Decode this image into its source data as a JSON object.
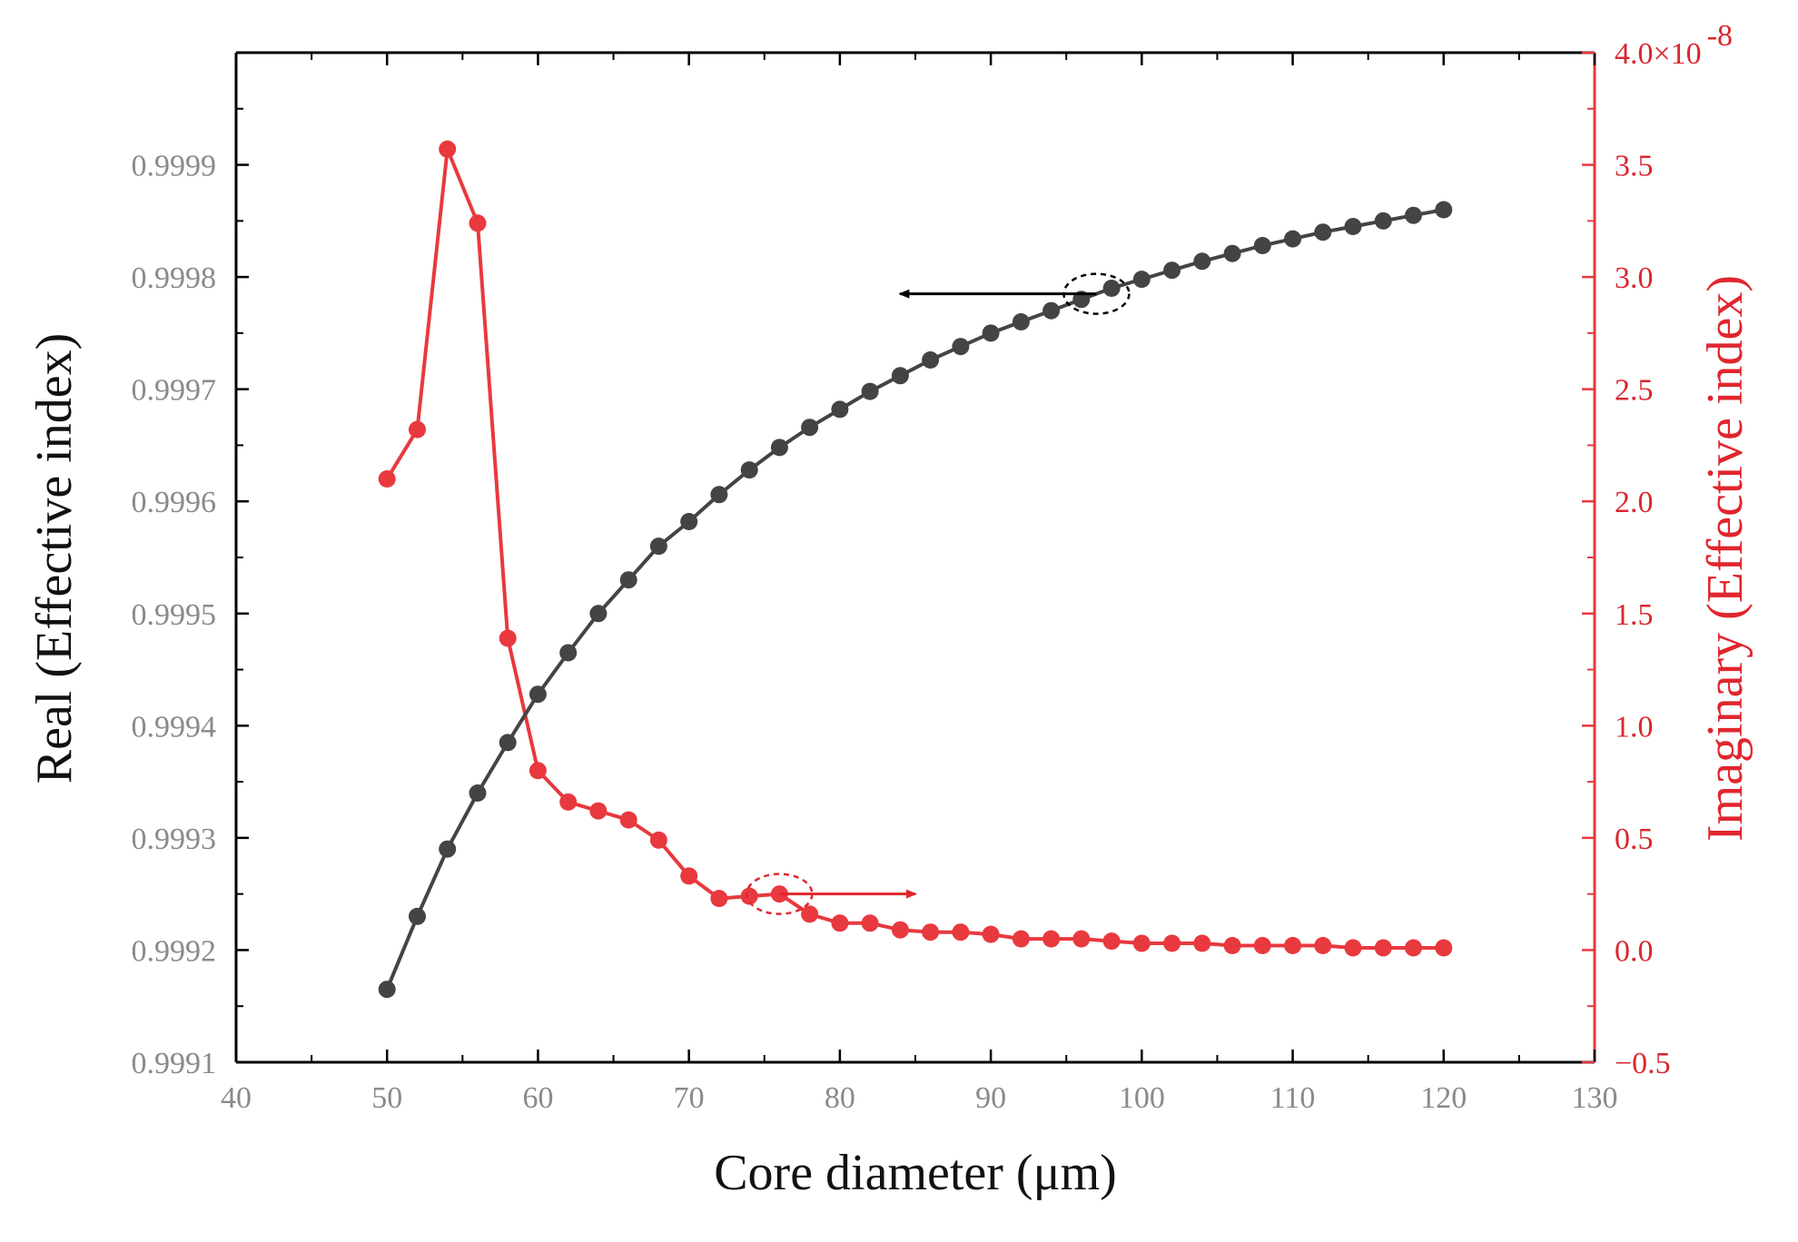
{
  "chart_data": {
    "type": "line",
    "title": "",
    "xlabel": "Core diameter (μm)",
    "ylabel_left": "Real (Effective index)",
    "ylabel_right": "Imaginary (Effective index)",
    "xlim": [
      40,
      130
    ],
    "xticks": [
      40,
      50,
      60,
      70,
      80,
      90,
      100,
      110,
      120,
      130
    ],
    "ylim_left": [
      0.9991,
      1.0
    ],
    "yticks_left": [
      "0.9991",
      "0.9992",
      "0.9993",
      "0.9994",
      "0.9995",
      "0.9996",
      "0.9997",
      "0.9998",
      "0.9999"
    ],
    "ylim_right": [
      -0.5,
      4.0
    ],
    "yticks_right": [
      "−0.5",
      "0.0",
      "0.5",
      "1.0",
      "1.5",
      "2.0",
      "2.5",
      "3.0",
      "3.5",
      "4.0×10"
    ],
    "right_axis_exponent": "-8",
    "x": [
      50,
      52,
      54,
      56,
      58,
      60,
      62,
      64,
      66,
      68,
      70,
      72,
      74,
      76,
      78,
      80,
      82,
      84,
      86,
      88,
      90,
      92,
      94,
      96,
      98,
      100,
      102,
      104,
      106,
      108,
      110,
      112,
      114,
      116,
      118,
      120
    ],
    "series": [
      {
        "name": "Real",
        "axis": "left",
        "color": "#444444",
        "values": [
          0.999165,
          0.99923,
          0.99929,
          0.99934,
          0.999385,
          0.999428,
          0.999465,
          0.9995,
          0.99953,
          0.99956,
          0.999582,
          0.999606,
          0.999628,
          0.999648,
          0.999666,
          0.999682,
          0.999698,
          0.999712,
          0.999726,
          0.999738,
          0.99975,
          0.99976,
          0.99977,
          0.99978,
          0.99979,
          0.999798,
          0.999806,
          0.999814,
          0.999821,
          0.999828,
          0.999834,
          0.99984,
          0.999845,
          0.99985,
          0.999855,
          0.99986
        ]
      },
      {
        "name": "Imaginary",
        "axis": "right",
        "color": "#e8393f",
        "values": [
          2.1,
          2.32,
          3.57,
          3.24,
          1.39,
          0.8,
          0.66,
          0.62,
          0.58,
          0.49,
          0.33,
          0.23,
          0.24,
          0.25,
          0.16,
          0.12,
          0.12,
          0.09,
          0.08,
          0.08,
          0.07,
          0.05,
          0.05,
          0.05,
          0.04,
          0.03,
          0.03,
          0.03,
          0.02,
          0.02,
          0.02,
          0.02,
          0.01,
          0.01,
          0.01,
          0.01
        ]
      }
    ],
    "annotations": [
      {
        "type": "ellipse-arrow",
        "target_series": "Real",
        "at_x": 97,
        "arrow_direction": "left",
        "color": "#000000"
      },
      {
        "type": "ellipse-arrow",
        "target_series": "Imaginary",
        "at_x": 76,
        "arrow_direction": "right",
        "color": "#e0262e"
      }
    ],
    "grid": false,
    "legend": "none"
  }
}
